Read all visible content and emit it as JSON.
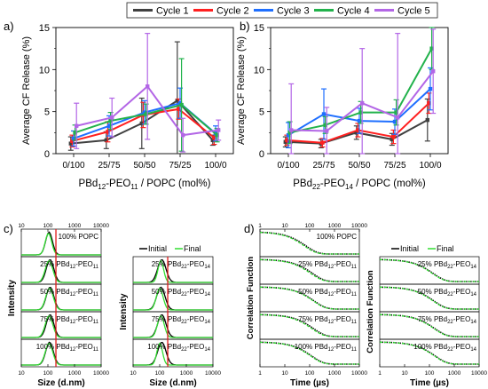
{
  "legend": {
    "entries": [
      {
        "name": "Cycle 1",
        "color": "#404040"
      },
      {
        "name": "Cycle 2",
        "color": "#ff2020"
      },
      {
        "name": "Cycle 3",
        "color": "#1f6fff"
      },
      {
        "name": "Cycle 4",
        "color": "#22b24c"
      },
      {
        "name": "Cycle 5",
        "color": "#b366e6"
      }
    ]
  },
  "panels": {
    "a": {
      "label": "a)"
    },
    "b": {
      "label": "b)"
    },
    "c": {
      "label": "c)",
      "ylabel": "Intensity",
      "xlabel": "Size (d.nm)"
    },
    "d": {
      "label": "d)",
      "ylabel": "Correlation Function",
      "xlabel": "Time (µs)"
    }
  },
  "dist_legend": {
    "initial": "Initial",
    "final": "Final",
    "initial_color": "#000000",
    "final_color": "#33dd33"
  },
  "stack_labels": {
    "left": [
      "100% POPC",
      "25% PBd12-PEO11",
      "50% PBd12-PEO11",
      "75% PBd12-PEO11",
      "100% PBd12-PEO11"
    ],
    "right": [
      "25% PBd22-PEO14",
      "50% PBd22-PEO14",
      "75% PBd22-PEO14",
      "100% PBd22-PEO14"
    ]
  },
  "size_ticks": [
    "10",
    "100",
    "1000",
    "10000"
  ],
  "time_ticks_top": [
    "1",
    "10",
    "100",
    "1000",
    "10000"
  ],
  "time_ticks_bottom": [
    "1",
    "10",
    "100",
    "1000",
    "10000"
  ],
  "time_ticks_right_top": [
    "1",
    "10",
    "100",
    "1000",
    "10000"
  ],
  "chart_data": [
    {
      "type": "line",
      "panel": "a",
      "ylabel": "Average CF Release (%)",
      "xlabel_parts": {
        "pre": "PBd",
        "sub1": "12",
        "mid": "-PEO",
        "sub2": "11",
        "post": " / POPC (mol%)"
      },
      "categories": [
        "0/100",
        "25/75",
        "50/50",
        "75/25",
        "100/0"
      ],
      "ylim": [
        0,
        15
      ],
      "yticks": [
        0,
        5,
        10,
        15
      ],
      "series": [
        {
          "name": "Cycle 1",
          "values": [
            1.2,
            1.6,
            3.6,
            6.3,
            1.6
          ],
          "err": [
            0.8,
            1.0,
            3.0,
            7.0,
            0.6
          ]
        },
        {
          "name": "Cycle 2",
          "values": [
            1.5,
            2.6,
            4.6,
            5.3,
            1.9
          ],
          "err": [
            0.7,
            1.2,
            1.5,
            1.2,
            0.8
          ]
        },
        {
          "name": "Cycle 3",
          "values": [
            1.8,
            3.3,
            4.9,
            6.0,
            2.4
          ],
          "err": [
            0.9,
            1.2,
            1.4,
            1.8,
            0.9
          ]
        },
        {
          "name": "Cycle 4",
          "values": [
            2.5,
            3.9,
            4.7,
            5.8,
            2.2
          ],
          "err": [
            0.9,
            1.0,
            1.2,
            5.5,
            0.8
          ]
        },
        {
          "name": "Cycle 5",
          "values": [
            3.3,
            4.3,
            8.0,
            2.2,
            2.8
          ],
          "err": [
            2.7,
            2.3,
            6.3,
            2.0,
            1.2
          ]
        }
      ]
    },
    {
      "type": "line",
      "panel": "b",
      "ylabel": "Average CF Release (%)",
      "xlabel_parts": {
        "pre": "PBd",
        "sub1": "22",
        "mid": "-PEO",
        "sub2": "14",
        "post": " / POPC (mol%)"
      },
      "categories": [
        "0/100",
        "25/75",
        "50/50",
        "75/25",
        "100/0"
      ],
      "ylim": [
        0,
        15
      ],
      "yticks": [
        0,
        5,
        10,
        15
      ],
      "series": [
        {
          "name": "Cycle 1",
          "values": [
            1.4,
            1.2,
            2.5,
            1.7,
            4.0
          ],
          "err": [
            0.6,
            0.5,
            0.8,
            0.7,
            2.5
          ]
        },
        {
          "name": "Cycle 2",
          "values": [
            1.6,
            1.3,
            2.8,
            2.0,
            6.0
          ],
          "err": [
            0.6,
            0.5,
            0.8,
            0.8,
            1.2
          ]
        },
        {
          "name": "Cycle 3",
          "values": [
            2.2,
            4.7,
            3.9,
            3.8,
            7.7
          ],
          "err": [
            1.5,
            3.0,
            1.5,
            1.5,
            2.5
          ]
        },
        {
          "name": "Cycle 4",
          "values": [
            2.5,
            3.4,
            4.9,
            4.9,
            12.5
          ],
          "err": [
            1.3,
            1.0,
            1.3,
            1.5,
            2.5
          ]
        },
        {
          "name": "Cycle 5",
          "values": [
            2.8,
            2.7,
            6.0,
            4.3,
            9.8
          ],
          "err": [
            5.5,
            2.8,
            6.5,
            10.0,
            5.0
          ]
        }
      ]
    }
  ]
}
